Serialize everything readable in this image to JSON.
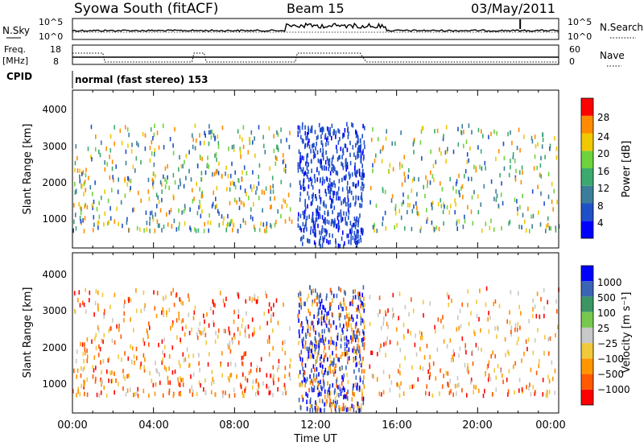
{
  "header": {
    "station": "Syowa South (fitACF)",
    "beam": "Beam 15",
    "date": "03/May/2011"
  },
  "noise_panel": {
    "left_label": "N.Sky",
    "right_label": "N.Search",
    "left_ticks": [
      "10^5",
      "10^0"
    ],
    "right_ticks": [
      "10^5",
      "10^0"
    ]
  },
  "freq_panel": {
    "left_label_line1": "Freq.",
    "left_label_line2": "[MHz]",
    "right_label": "Nave",
    "left_ticks": [
      "18",
      "8"
    ],
    "right_ticks": [
      "60",
      "0"
    ]
  },
  "cpid": {
    "label": "CPID",
    "text": "normal (fast stereo) 153"
  },
  "power_panel": {
    "ylabel": "Slant Range [km]",
    "yticks": [
      "4000",
      "3000",
      "2000",
      "1000"
    ],
    "colorbar_label": "Power [dB]",
    "colorbar_ticks": [
      "28",
      "24",
      "20",
      "16",
      "12",
      "8",
      "4"
    ],
    "colors": [
      "#0000ff",
      "#2050c8",
      "#3c7d9b",
      "#3caa6e",
      "#6ed23c",
      "#f0c800",
      "#ff8c00",
      "#ff0000"
    ]
  },
  "velocity_panel": {
    "ylabel": "Slant Range [km]",
    "yticks": [
      "4000",
      "3000",
      "2000",
      "1000"
    ],
    "colorbar_label": "Velocity [m s⁻¹]",
    "colorbar_ticks": [
      "1000",
      "500",
      "100",
      "25",
      "−25",
      "−100",
      "−500",
      "−1000"
    ],
    "colors": [
      "#0000ff",
      "#3c64b4",
      "#3c9664",
      "#78c850",
      "#c8c8c8",
      "#f0c83c",
      "#ff9600",
      "#ff5a00",
      "#ff0000"
    ]
  },
  "x_axis": {
    "ticks": [
      "00:00",
      "04:00",
      "08:00",
      "12:00",
      "16:00",
      "20:00",
      "00:00"
    ],
    "label": "Time UT"
  },
  "chart_data": {
    "type": "heatmap",
    "title": "Syowa South (fitACF)",
    "x_range_hours": [
      0,
      24
    ],
    "y_range_km": [
      180,
      4500
    ],
    "yticks_km": [
      1000,
      2000,
      3000,
      4000
    ],
    "panels": [
      {
        "name": "Power [dB]",
        "scale": [
          0,
          30
        ],
        "clusters": [
          {
            "t": [
              0,
              10.5
            ],
            "r": [
              800,
              3600
            ],
            "typical": 12
          },
          {
            "t": [
              11,
              14.5
            ],
            "r": [
              300,
              3600
            ],
            "typical": 4
          },
          {
            "t": [
              14.5,
              24
            ],
            "r": [
              800,
              3600
            ],
            "typical": 12
          }
        ]
      },
      {
        "name": "Velocity [m s-1]",
        "scale": [
          -1000,
          1000
        ],
        "clusters": [
          {
            "t": [
              0,
              10.5
            ],
            "r": [
              400,
              3600
            ],
            "typical": -100
          },
          {
            "t": [
              11,
              14.5
            ],
            "r": [
              300,
              3600
            ],
            "typical": 500
          },
          {
            "t": [
              14.5,
              24
            ],
            "r": [
              400,
              3600
            ],
            "typical": -100
          }
        ]
      }
    ]
  }
}
